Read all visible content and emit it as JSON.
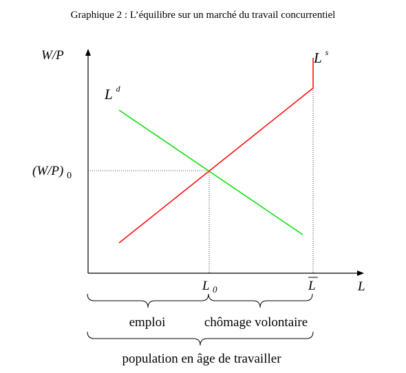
{
  "title": "Graphique 2 : L’équilibre sur un marché du travail concurrentiel",
  "axes": {
    "y_label": "W/P",
    "x_label": "L"
  },
  "curves": {
    "demand": {
      "label_main": "L",
      "label_sup": "d",
      "color": "#00e000"
    },
    "supply": {
      "label_main": "L",
      "label_sup": "s",
      "color": "#ff0000"
    }
  },
  "equilibrium": {
    "wage_label_main": "(W/P)",
    "wage_label_sub": "0",
    "employment_label_main": "L",
    "employment_label_sub": "0"
  },
  "labor_force_label": "L",
  "braces": {
    "employment": "emploi",
    "voluntary_unemployment": "chômage volontaire",
    "working_age_population": "population en âge de travailler"
  }
}
